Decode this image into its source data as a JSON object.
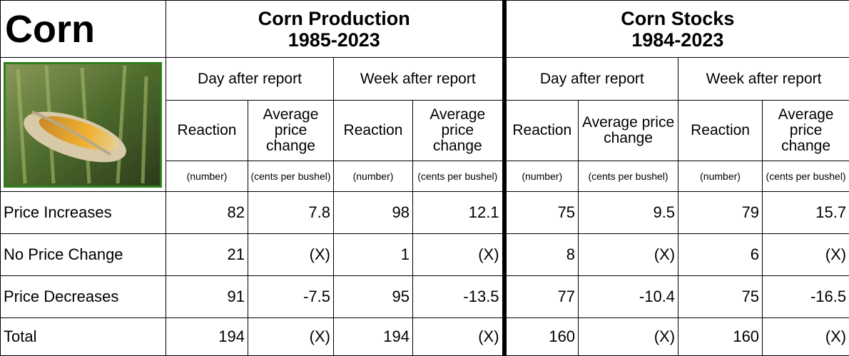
{
  "title": "Corn",
  "groups": [
    {
      "title_lines": [
        "Corn Production",
        "1985-2023"
      ],
      "periods": [
        "Day after report",
        "Week after report"
      ]
    },
    {
      "title_lines": [
        "Corn Stocks",
        "1984-2023"
      ],
      "periods": [
        "Day after report",
        "Week after report"
      ]
    }
  ],
  "column_headers": [
    "Reaction",
    "Average price change"
  ],
  "units": [
    "(number)",
    "(cents per bushel)"
  ],
  "rows": [
    {
      "label": "Price Increases",
      "values": [
        82,
        7.8,
        98,
        12.1,
        75,
        9.5,
        79,
        15.7
      ]
    },
    {
      "label": "No Price Change",
      "values": [
        21,
        "(X)",
        1,
        "(X)",
        8,
        "(X)",
        6,
        "(X)"
      ]
    },
    {
      "label": "Price Decreases",
      "values": [
        91,
        -7.5,
        95,
        -13.5,
        77,
        -10.4,
        75,
        -16.5
      ]
    },
    {
      "label": "Total",
      "values": [
        194,
        "(X)",
        194,
        "(X)",
        160,
        "(X)",
        160,
        "(X)"
      ]
    }
  ]
}
